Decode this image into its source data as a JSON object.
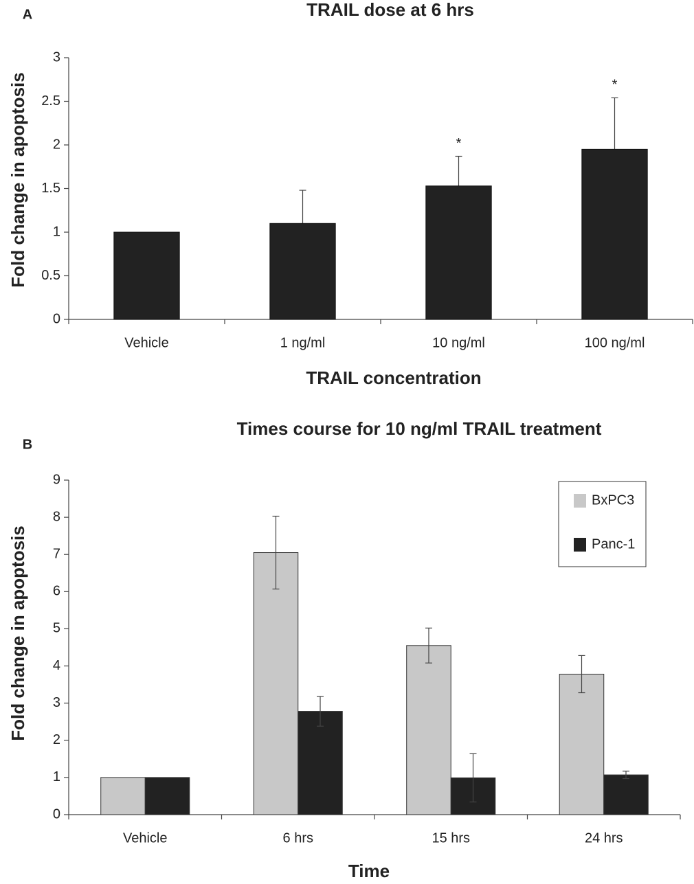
{
  "chart_data": [
    {
      "type": "bar",
      "panel_label": "A",
      "title": "TRAIL dose at 6 hrs",
      "xlabel": "TRAIL concentration",
      "ylabel": "Fold change in apoptosis",
      "categories": [
        "Vehicle",
        "1 ng/ml",
        "10 ng/ml",
        "100 ng/ml"
      ],
      "values": [
        1.0,
        1.1,
        1.53,
        1.95
      ],
      "errors": [
        null,
        0.38,
        0.34,
        0.59
      ],
      "annotations": [
        null,
        null,
        "*",
        "*"
      ],
      "color": "#222222",
      "ylim": [
        0,
        3
      ],
      "yticks": [
        0,
        0.5,
        1,
        1.5,
        2,
        2.5,
        3
      ],
      "grid": false
    },
    {
      "type": "grouped_bar",
      "panel_label": "B",
      "title": "Times course for 10 ng/ml TRAIL treatment",
      "xlabel": "Time",
      "ylabel": "Fold change in apoptosis",
      "categories": [
        "Vehicle",
        "6 hrs",
        "15 hrs",
        "24 hrs"
      ],
      "series": [
        {
          "name": "BxPC3",
          "color": "#c8c8c8",
          "values": [
            1.0,
            7.05,
            4.55,
            3.78
          ],
          "errors": [
            null,
            0.98,
            0.47,
            0.5
          ]
        },
        {
          "name": "Panc-1",
          "color": "#222222",
          "values": [
            1.0,
            2.78,
            0.99,
            1.07
          ],
          "errors": [
            null,
            0.4,
            0.65,
            0.1
          ]
        }
      ],
      "legend": "upper right",
      "ylim": [
        0,
        9
      ],
      "yticks": [
        0,
        1,
        2,
        3,
        4,
        5,
        6,
        7,
        8,
        9
      ],
      "grid": false
    }
  ]
}
